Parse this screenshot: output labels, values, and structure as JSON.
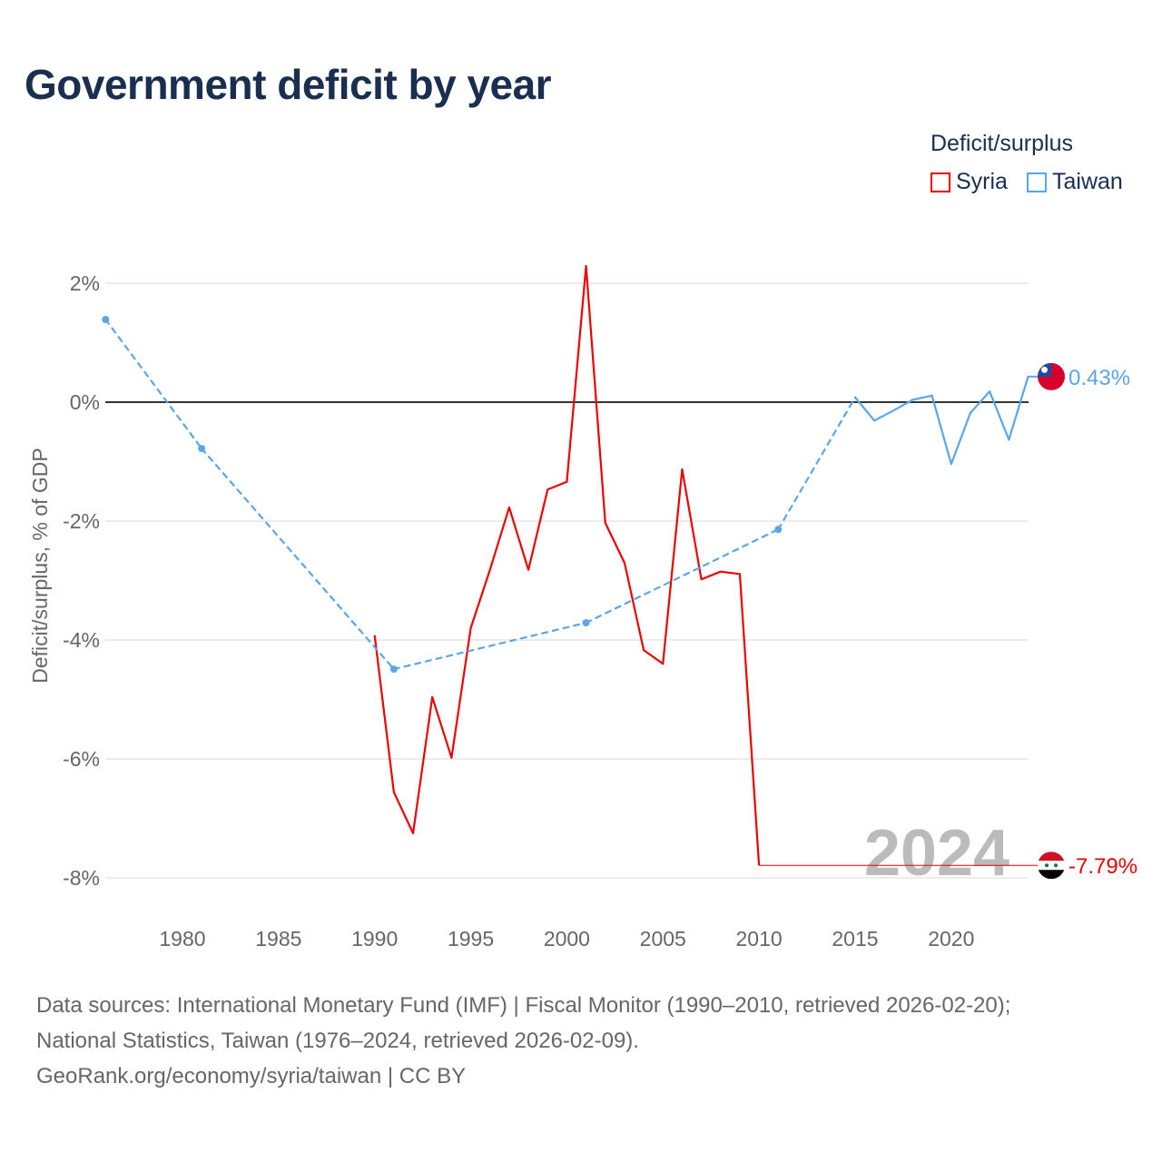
{
  "title": "Government deficit by year",
  "legend": {
    "title": "Deficit/surplus",
    "items": [
      {
        "name": "Syria",
        "color": "#ee0000"
      },
      {
        "name": "Taiwan",
        "color": "#5aa6ea"
      }
    ]
  },
  "chart_data": {
    "type": "line",
    "ylabel": "Deficit/surplus, % of GDP",
    "xlabel": "",
    "xlim": [
      1976,
      2024
    ],
    "ylim": [
      -8,
      2
    ],
    "x_ticks": [
      1980,
      1985,
      1990,
      1995,
      2000,
      2005,
      2010,
      2015,
      2020
    ],
    "y_ticks": [
      2,
      0,
      -2,
      -4,
      -6,
      -8
    ],
    "y_tick_labels": [
      "2%",
      "0%",
      "-2%",
      "-4%",
      "-6%",
      "-8%"
    ],
    "grid": true,
    "watermark_year": "2024",
    "series": [
      {
        "name": "Syria",
        "color": "#ee0000",
        "x": [
          1990,
          1991,
          1992,
          1993,
          1994,
          1995,
          1996,
          1997,
          1998,
          1999,
          2000,
          2001,
          2002,
          2003,
          2004,
          2005,
          2006,
          2007,
          2008,
          2009,
          2010
        ],
        "y": [
          -3.92,
          -6.56,
          -7.25,
          -4.96,
          -5.98,
          -3.8,
          -2.82,
          -1.77,
          -2.82,
          -1.47,
          -1.34,
          2.29,
          -2.03,
          -2.7,
          -4.17,
          -4.4,
          -1.13,
          -2.98,
          -2.85,
          -2.89,
          -7.79
        ],
        "end_label": "-7.79%"
      },
      {
        "name": "Taiwan",
        "color": "#5aa6ea",
        "x": [
          1976,
          1981,
          1991,
          2001,
          2011,
          2015,
          2016,
          2017,
          2018,
          2019,
          2020,
          2021,
          2022,
          2023,
          2024
        ],
        "y": [
          1.39,
          -0.78,
          -4.49,
          -3.71,
          -2.14,
          0.08,
          -0.31,
          -0.14,
          0.04,
          0.11,
          -1.04,
          -0.18,
          0.18,
          -0.63,
          0.43
        ],
        "end_label": "0.43%"
      }
    ]
  },
  "footer": {
    "line1": "Data sources: International Monetary Fund (IMF) | Fiscal Monitor (1990–2010, retrieved 2026-02-20);",
    "line2": "National Statistics, Taiwan (1976–2024, retrieved 2026-02-09).",
    "line3": "GeoRank.org/economy/syria/taiwan | CC BY"
  }
}
